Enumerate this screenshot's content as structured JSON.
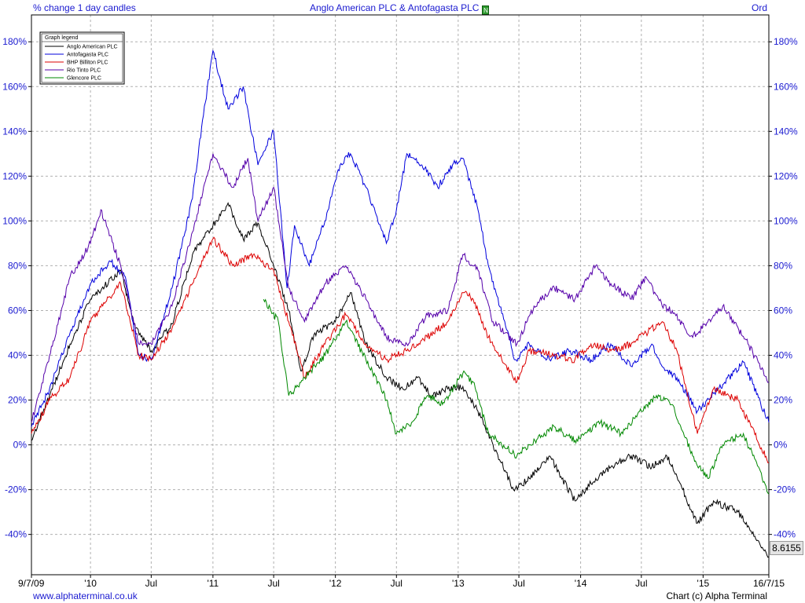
{
  "header": {
    "left_label": "% change 1 day candles",
    "title": "Anglo American PLC  & Antofagasta PLC",
    "news_icon_label": "N",
    "right_label": "Ord"
  },
  "footer": {
    "website": "www.alphaterminal.co.uk",
    "copyright": "Chart (c) Alpha Terminal"
  },
  "last_value_badge": "8.6155",
  "colors": {
    "accent": "#1a1ad0",
    "grid": "#b0b0b0"
  },
  "chart_data": {
    "type": "line",
    "yunit": "%",
    "ylim": [
      -58,
      192
    ],
    "ytick_labels": [
      "-40%",
      "-20%",
      "0%",
      "20%",
      "40%",
      "60%",
      "80%",
      "100%",
      "120%",
      "140%",
      "160%",
      "180%"
    ],
    "ytick_values": [
      -40,
      -20,
      0,
      20,
      40,
      60,
      80,
      100,
      120,
      140,
      160,
      180
    ],
    "xlim": [
      "2009-07-09",
      "2015-07-16"
    ],
    "xtick_labels": [
      "9/7/09",
      "'10",
      "Jul",
      "'11",
      "Jul",
      "'12",
      "Jul",
      "'13",
      "Jul",
      "'14",
      "Jul",
      "'15",
      "16/7/15"
    ],
    "xtick_dates": [
      "2009-07-09",
      "2010-01-01",
      "2010-07-01",
      "2011-01-01",
      "2011-07-01",
      "2012-01-01",
      "2012-07-01",
      "2013-01-01",
      "2013-07-01",
      "2014-01-01",
      "2014-07-01",
      "2015-01-01",
      "2015-07-16"
    ],
    "grid": true,
    "legend": {
      "title": "Graph legend",
      "placement": "top-left"
    },
    "series": [
      {
        "name": "Anglo American PLC",
        "color": "#000000",
        "points": [
          [
            "2009-07-09",
            2
          ],
          [
            "2009-09-01",
            22
          ],
          [
            "2009-11-01",
            45
          ],
          [
            "2010-01-01",
            65
          ],
          [
            "2010-04-01",
            78
          ],
          [
            "2010-05-15",
            52
          ],
          [
            "2010-07-01",
            42
          ],
          [
            "2010-09-01",
            54
          ],
          [
            "2010-11-01",
            85
          ],
          [
            "2011-01-01",
            98
          ],
          [
            "2011-02-15",
            108
          ],
          [
            "2011-04-01",
            92
          ],
          [
            "2011-05-15",
            99
          ],
          [
            "2011-07-01",
            80
          ],
          [
            "2011-08-15",
            60
          ],
          [
            "2011-09-20",
            33
          ],
          [
            "2011-11-01",
            50
          ],
          [
            "2012-01-01",
            55
          ],
          [
            "2012-02-15",
            68
          ],
          [
            "2012-04-01",
            45
          ],
          [
            "2012-06-01",
            30
          ],
          [
            "2012-07-20",
            25
          ],
          [
            "2012-09-01",
            30
          ],
          [
            "2012-10-15",
            22
          ],
          [
            "2012-12-01",
            25
          ],
          [
            "2013-01-15",
            26
          ],
          [
            "2013-03-01",
            15
          ],
          [
            "2013-04-15",
            0
          ],
          [
            "2013-06-15",
            -20
          ],
          [
            "2013-08-01",
            -15
          ],
          [
            "2013-10-01",
            -5
          ],
          [
            "2013-12-15",
            -25
          ],
          [
            "2014-02-15",
            -15
          ],
          [
            "2014-04-01",
            -10
          ],
          [
            "2014-06-01",
            -5
          ],
          [
            "2014-08-01",
            -10
          ],
          [
            "2014-09-15",
            -5
          ],
          [
            "2014-11-01",
            -20
          ],
          [
            "2014-12-15",
            -35
          ],
          [
            "2015-02-01",
            -25
          ],
          [
            "2015-04-15",
            -30
          ],
          [
            "2015-07-16",
            -50
          ]
        ]
      },
      {
        "name": "Antofagasta PLC",
        "color": "#0000dd",
        "points": [
          [
            "2009-07-09",
            8
          ],
          [
            "2009-09-01",
            25
          ],
          [
            "2009-11-01",
            50
          ],
          [
            "2010-01-01",
            72
          ],
          [
            "2010-03-01",
            82
          ],
          [
            "2010-04-15",
            75
          ],
          [
            "2010-05-25",
            40
          ],
          [
            "2010-07-01",
            38
          ],
          [
            "2010-09-01",
            70
          ],
          [
            "2010-11-01",
            110
          ],
          [
            "2010-12-01",
            145
          ],
          [
            "2011-01-01",
            176
          ],
          [
            "2011-02-15",
            150
          ],
          [
            "2011-04-01",
            160
          ],
          [
            "2011-05-15",
            125
          ],
          [
            "2011-07-01",
            140
          ],
          [
            "2011-08-10",
            70
          ],
          [
            "2011-09-01",
            98
          ],
          [
            "2011-10-15",
            80
          ],
          [
            "2011-12-01",
            100
          ],
          [
            "2012-01-15",
            125
          ],
          [
            "2012-02-15",
            130
          ],
          [
            "2012-04-01",
            115
          ],
          [
            "2012-06-01",
            90
          ],
          [
            "2012-07-01",
            105
          ],
          [
            "2012-08-01",
            130
          ],
          [
            "2012-09-15",
            125
          ],
          [
            "2012-11-01",
            115
          ],
          [
            "2012-12-15",
            125
          ],
          [
            "2013-01-15",
            128
          ],
          [
            "2013-03-01",
            105
          ],
          [
            "2013-04-01",
            80
          ],
          [
            "2013-06-20",
            38
          ],
          [
            "2013-08-01",
            45
          ],
          [
            "2013-10-01",
            38
          ],
          [
            "2013-12-01",
            42
          ],
          [
            "2014-02-01",
            38
          ],
          [
            "2014-04-01",
            45
          ],
          [
            "2014-06-01",
            35
          ],
          [
            "2014-08-01",
            45
          ],
          [
            "2014-09-01",
            35
          ],
          [
            "2014-10-15",
            30
          ],
          [
            "2014-12-15",
            15
          ],
          [
            "2015-02-15",
            25
          ],
          [
            "2015-05-01",
            37
          ],
          [
            "2015-07-16",
            10
          ]
        ]
      },
      {
        "name": "BHP Billiton PLC",
        "color": "#dd0000",
        "points": [
          [
            "2009-07-09",
            5
          ],
          [
            "2009-09-01",
            20
          ],
          [
            "2009-11-01",
            30
          ],
          [
            "2010-01-01",
            55
          ],
          [
            "2010-04-01",
            72
          ],
          [
            "2010-05-25",
            40
          ],
          [
            "2010-07-01",
            38
          ],
          [
            "2010-09-01",
            52
          ],
          [
            "2010-11-01",
            72
          ],
          [
            "2011-01-01",
            92
          ],
          [
            "2011-03-01",
            80
          ],
          [
            "2011-05-01",
            85
          ],
          [
            "2011-07-01",
            78
          ],
          [
            "2011-08-15",
            55
          ],
          [
            "2011-10-01",
            30
          ],
          [
            "2011-12-01",
            45
          ],
          [
            "2012-02-01",
            58
          ],
          [
            "2012-04-01",
            45
          ],
          [
            "2012-06-01",
            38
          ],
          [
            "2012-08-01",
            42
          ],
          [
            "2012-10-01",
            48
          ],
          [
            "2012-12-01",
            55
          ],
          [
            "2013-01-15",
            68
          ],
          [
            "2013-02-15",
            65
          ],
          [
            "2013-04-01",
            48
          ],
          [
            "2013-06-25",
            28
          ],
          [
            "2013-08-01",
            42
          ],
          [
            "2013-10-15",
            40
          ],
          [
            "2013-12-15",
            38
          ],
          [
            "2014-02-01",
            45
          ],
          [
            "2014-04-01",
            42
          ],
          [
            "2014-06-01",
            45
          ],
          [
            "2014-07-15",
            50
          ],
          [
            "2014-09-01",
            55
          ],
          [
            "2014-10-15",
            42
          ],
          [
            "2014-12-15",
            5
          ],
          [
            "2015-02-01",
            25
          ],
          [
            "2015-04-15",
            20
          ],
          [
            "2015-07-16",
            -8
          ]
        ]
      },
      {
        "name": "Rio Tinto PLC",
        "color": "#5500aa",
        "points": [
          [
            "2009-07-09",
            10
          ],
          [
            "2009-09-01",
            40
          ],
          [
            "2009-11-01",
            75
          ],
          [
            "2010-01-01",
            90
          ],
          [
            "2010-02-01",
            105
          ],
          [
            "2010-04-01",
            80
          ],
          [
            "2010-05-25",
            45
          ],
          [
            "2010-07-01",
            45
          ],
          [
            "2010-09-01",
            62
          ],
          [
            "2010-11-01",
            95
          ],
          [
            "2011-01-01",
            130
          ],
          [
            "2011-03-01",
            115
          ],
          [
            "2011-04-15",
            128
          ],
          [
            "2011-05-15",
            100
          ],
          [
            "2011-07-01",
            115
          ],
          [
            "2011-08-15",
            70
          ],
          [
            "2011-10-01",
            55
          ],
          [
            "2011-12-01",
            72
          ],
          [
            "2012-02-01",
            80
          ],
          [
            "2012-04-01",
            65
          ],
          [
            "2012-06-01",
            48
          ],
          [
            "2012-08-01",
            45
          ],
          [
            "2012-10-01",
            58
          ],
          [
            "2012-12-01",
            60
          ],
          [
            "2013-01-15",
            85
          ],
          [
            "2013-03-01",
            78
          ],
          [
            "2013-04-15",
            55
          ],
          [
            "2013-06-25",
            45
          ],
          [
            "2013-08-15",
            62
          ],
          [
            "2013-10-15",
            70
          ],
          [
            "2013-12-15",
            65
          ],
          [
            "2014-02-15",
            80
          ],
          [
            "2014-04-01",
            72
          ],
          [
            "2014-06-01",
            65
          ],
          [
            "2014-07-15",
            75
          ],
          [
            "2014-09-01",
            62
          ],
          [
            "2014-10-01",
            60
          ],
          [
            "2014-12-01",
            48
          ],
          [
            "2015-03-01",
            62
          ],
          [
            "2015-05-15",
            45
          ],
          [
            "2015-07-16",
            28
          ]
        ]
      },
      {
        "name": "Glencore PLC",
        "color": "#008800",
        "points": [
          [
            "2011-06-01",
            65
          ],
          [
            "2011-07-15",
            55
          ],
          [
            "2011-08-15",
            22
          ],
          [
            "2011-10-01",
            30
          ],
          [
            "2011-12-01",
            40
          ],
          [
            "2012-02-01",
            55
          ],
          [
            "2012-04-01",
            38
          ],
          [
            "2012-06-01",
            20
          ],
          [
            "2012-07-01",
            5
          ],
          [
            "2012-08-15",
            10
          ],
          [
            "2012-10-01",
            22
          ],
          [
            "2012-11-15",
            18
          ],
          [
            "2013-01-15",
            32
          ],
          [
            "2013-02-15",
            28
          ],
          [
            "2013-04-01",
            5
          ],
          [
            "2013-06-25",
            -5
          ],
          [
            "2013-08-01",
            0
          ],
          [
            "2013-10-15",
            8
          ],
          [
            "2013-12-15",
            2
          ],
          [
            "2014-03-01",
            10
          ],
          [
            "2014-05-01",
            5
          ],
          [
            "2014-07-01",
            15
          ],
          [
            "2014-08-15",
            22
          ],
          [
            "2014-10-01",
            18
          ],
          [
            "2014-12-01",
            -5
          ],
          [
            "2015-01-15",
            -15
          ],
          [
            "2015-03-01",
            0
          ],
          [
            "2015-05-01",
            5
          ],
          [
            "2015-07-16",
            -22
          ]
        ]
      }
    ]
  }
}
